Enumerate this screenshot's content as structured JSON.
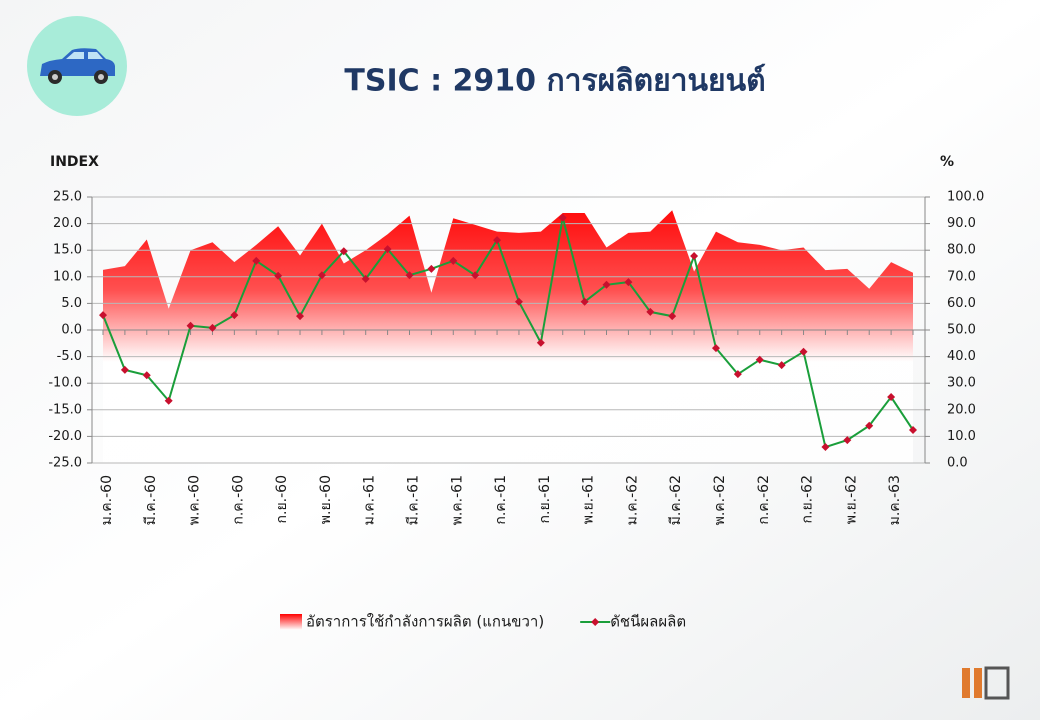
{
  "chart_data": {
    "type": "line",
    "title": "TSIC : 2910 การผลิตยานยนต์",
    "y_label": "INDEX",
    "y2_label": "%",
    "categories": [
      "ม.ค.-60",
      null,
      "มี.ค.-60",
      null,
      "พ.ค.-60",
      null,
      "ก.ค.-60",
      null,
      "ก.ย.-60",
      null,
      "พ.ย.-60",
      null,
      "ม.ค.-61",
      null,
      "มี.ค.-61",
      null,
      "พ.ค.-61",
      null,
      "ก.ค.-61",
      null,
      "ก.ย.-61",
      null,
      "พ.ย.-61",
      null,
      "ม.ค.-62",
      null,
      "มี.ค.-62",
      null,
      "พ.ค.-62",
      null,
      "ก.ค.-62",
      null,
      "ก.ย.-62",
      null,
      "พ.ย.-62",
      null,
      "ม.ค.-63",
      null
    ],
    "series": [
      {
        "name": "อัตราการใช้กำลังการผลิต (แกนขวา)",
        "type": "area",
        "axis": "y2",
        "color": "#ff0000",
        "values": [
          72.6,
          74,
          84,
          58,
          80,
          83,
          75.5,
          82,
          89,
          78,
          90,
          75,
          80,
          86,
          93,
          64,
          92,
          89.5,
          87,
          86.5,
          87,
          94,
          94,
          81,
          86.5,
          87,
          95,
          72,
          87,
          83,
          82,
          80,
          81,
          72.5,
          73,
          65.5,
          75.5,
          71.5
        ]
      },
      {
        "name": "ดัชนีผลผลิต",
        "type": "line",
        "color": "#1a9e3a",
        "marker_color": "#c8102e",
        "values": [
          2.8,
          -7.5,
          -8.5,
          -13.3,
          0.8,
          0.4,
          2.8,
          13.0,
          10.2,
          2.6,
          10.3,
          14.8,
          9.6,
          15.2,
          10.3,
          11.5,
          13.0,
          10.3,
          16.9,
          5.3,
          -2.4,
          21.1,
          5.3,
          8.5,
          9.0,
          3.4,
          2.6,
          13.9,
          -3.4,
          -8.3,
          -5.6,
          -6.6,
          -4.1,
          -22.0,
          -20.7,
          -18.0,
          -12.6,
          -18.8
        ]
      }
    ],
    "ylim": [
      -25,
      25
    ],
    "yticks": [
      {
        "value": -25,
        "label": "-25.0"
      },
      {
        "value": -20,
        "label": "-20.0"
      },
      {
        "value": -15,
        "label": "-15.0"
      },
      {
        "value": -10,
        "label": "-10.0"
      },
      {
        "value": -5,
        "label": "-5.0"
      },
      {
        "value": 0,
        "label": "0.0"
      },
      {
        "value": 5,
        "label": "5.0"
      },
      {
        "value": 10,
        "label": "10.0"
      },
      {
        "value": 15,
        "label": "15.0"
      },
      {
        "value": 20,
        "label": "20.0"
      },
      {
        "value": 25,
        "label": "25.0"
      }
    ],
    "y2lim": [
      0,
      100
    ],
    "y2ticks": [
      {
        "value": 0,
        "label": "0.0"
      },
      {
        "value": 10,
        "label": "10.0"
      },
      {
        "value": 20,
        "label": "20.0"
      },
      {
        "value": 30,
        "label": "30.0"
      },
      {
        "value": 40,
        "label": "40.0"
      },
      {
        "value": 50,
        "label": "50.0"
      },
      {
        "value": 60,
        "label": "60.0"
      },
      {
        "value": 70,
        "label": "70.0"
      },
      {
        "value": 80,
        "label": "80.0"
      },
      {
        "value": 90,
        "label": "90.0"
      },
      {
        "value": 100,
        "label": "100.0"
      }
    ],
    "grid": true,
    "legend": "bottom"
  }
}
